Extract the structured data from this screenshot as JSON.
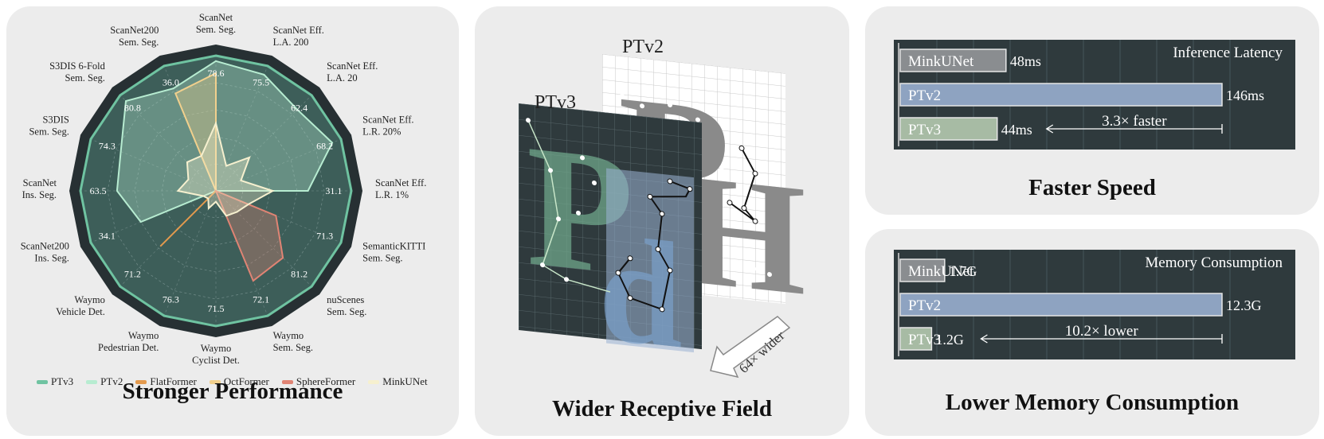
{
  "panels": {
    "performance_title": "Stronger Performance",
    "field_title": "Wider Receptive Field",
    "speed_title": "Faster Speed",
    "memory_title": "Lower Memory Consumption"
  },
  "colors": {
    "PTv3": "#6fc3a1",
    "PTv2": "#b7ecd1",
    "FlatFormer": "#e39a4e",
    "OctFormer": "#f1d08d",
    "SphereFormer": "#e08474",
    "MinkUNet": "#f6f0cf",
    "bar_mink": "#8a8d90",
    "bar_ptv2": "#8ea3c1",
    "bar_ptv3": "#a7bba4",
    "dark_bg": "#2f3a3d"
  },
  "receptive_field": {
    "ptv2_label": "PTv2",
    "ptv3_label": "PTv3",
    "arrow_label": "64× wider"
  },
  "chart_data": [
    {
      "type": "radar",
      "title": "Stronger Performance",
      "axes": [
        {
          "label": [
            "ScanNet",
            "Sem. Seg."
          ],
          "value_label": "78.6"
        },
        {
          "label": [
            "ScanNet Eff.",
            "L.A. 200"
          ],
          "value_label": "75.5"
        },
        {
          "label": [
            "ScanNet Eff.",
            "L.A. 20"
          ],
          "value_label": "62.4"
        },
        {
          "label": [
            "ScanNet Eff.",
            "L.R. 20%"
          ],
          "value_label": "68.2"
        },
        {
          "label": [
            "ScanNet Eff.",
            "L.R. 1%"
          ],
          "value_label": "31.1"
        },
        {
          "label": [
            "SemanticKITTI",
            "Sem. Seg."
          ],
          "value_label": "71.3"
        },
        {
          "label": [
            "nuScenes",
            "Sem. Seg."
          ],
          "value_label": "81.2"
        },
        {
          "label": [
            "Waymo",
            "Sem. Seg."
          ],
          "value_label": "72.1"
        },
        {
          "label": [
            "Waymo",
            "Cyclist Det."
          ],
          "value_label": "71.5"
        },
        {
          "label": [
            "Waymo",
            "Pedestrian Det."
          ],
          "value_label": "76.3"
        },
        {
          "label": [
            "Waymo",
            "Vehicle Det."
          ],
          "value_label": "71.2"
        },
        {
          "label": [
            "ScanNet200",
            "Ins. Seg."
          ],
          "value_label": "34.1"
        },
        {
          "label": [
            "ScanNet",
            "Ins. Seg."
          ],
          "value_label": "63.5"
        },
        {
          "label": [
            "S3DIS",
            "Sem. Seg."
          ],
          "value_label": "74.3"
        },
        {
          "label": [
            "S3DIS 6-Fold",
            "Sem. Seg."
          ],
          "value_label": "80.8"
        },
        {
          "label": [
            "ScanNet200",
            "Sem. Seg."
          ],
          "value_label": "36.0"
        }
      ],
      "series": [
        {
          "name": "PTv3",
          "values": [
            1,
            1,
            1,
            1,
            1,
            1,
            1,
            1,
            1,
            1,
            1,
            1,
            1,
            1,
            1,
            1
          ]
        },
        {
          "name": "PTv2",
          "values": [
            0.96,
            0.93,
            0.85,
            0.93,
            0.68,
            0.0,
            0.0,
            0.0,
            0.0,
            0.0,
            0.0,
            0.6,
            0.73,
            0.76,
            0.94,
            0.82
          ]
        },
        {
          "name": "FlatFormer",
          "values": [
            0,
            0,
            0,
            0,
            0,
            0,
            0,
            0,
            0,
            0.0,
            0.58,
            0,
            0,
            0,
            0,
            0
          ]
        },
        {
          "name": "OctFormer",
          "values": [
            0.87,
            0,
            0,
            0,
            0,
            0,
            0,
            0,
            0,
            0,
            0,
            0,
            0,
            0,
            0,
            0.78
          ]
        },
        {
          "name": "SphereFormer",
          "values": [
            0,
            0,
            0,
            0,
            0,
            0.48,
            0.7,
            0.72,
            0,
            0,
            0,
            0,
            0,
            0,
            0,
            0
          ]
        },
        {
          "name": "MinkUNet",
          "values": [
            0.5,
            0.2,
            0.35,
            0.2,
            0.42,
            0.26,
            0.22,
            0.2,
            0.08,
            0.14,
            0.08,
            0.1,
            0.28,
            0.22,
            0.3,
            0.28
          ]
        }
      ],
      "legend": [
        "PTv3",
        "PTv2",
        "FlatFormer",
        "OctFormer",
        "SphereFormer",
        "MinkUNet"
      ]
    },
    {
      "type": "bar",
      "orientation": "horizontal",
      "title": "Inference Latency",
      "categories": [
        "MinkUNet",
        "PTv2",
        "PTv3"
      ],
      "values": [
        48,
        146,
        44
      ],
      "value_labels": [
        "48ms",
        "146ms",
        "44ms"
      ],
      "annotation": "3.3× faster",
      "xlim": [
        0,
        146
      ]
    },
    {
      "type": "bar",
      "orientation": "horizontal",
      "title": "Memory Consumption",
      "categories": [
        "MinkUNet",
        "PTv2",
        "PTv3"
      ],
      "values": [
        1.7,
        12.3,
        1.2
      ],
      "value_labels": [
        "1.7G",
        "12.3G",
        "1.2G"
      ],
      "annotation": "10.2× lower",
      "xlim": [
        0,
        12.3
      ]
    }
  ]
}
